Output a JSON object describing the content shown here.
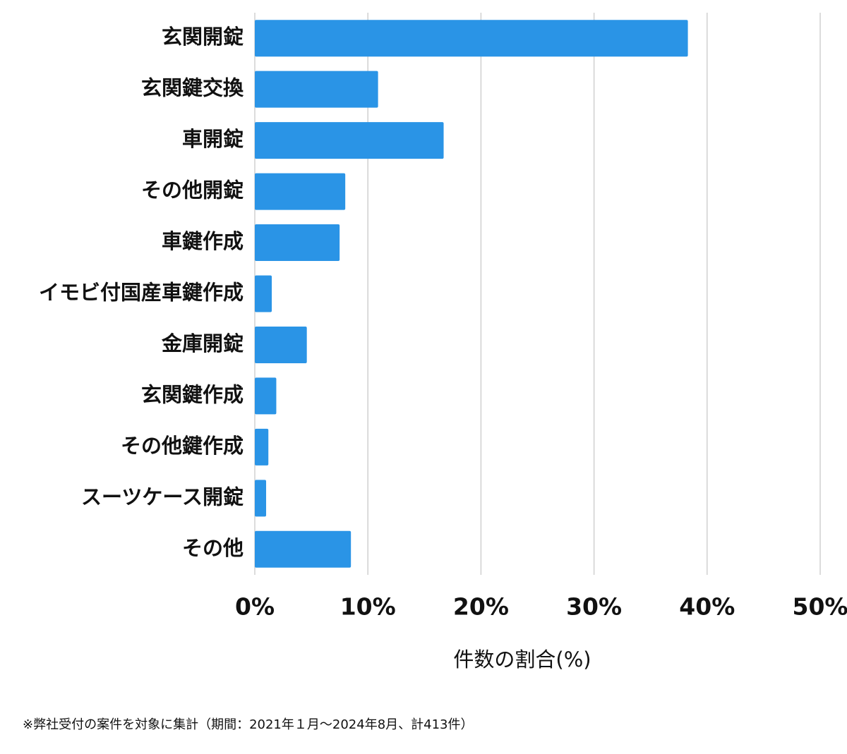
{
  "chart_data": {
    "type": "barh",
    "categories": [
      "玄関開錠",
      "玄関鍵交換",
      "車開錠",
      "その他開錠",
      "車鍵作成",
      "イモビ付国産車鍵作成",
      "金庫開錠",
      "玄関鍵作成",
      "その他鍵作成",
      "スーツケース開錠",
      "その他"
    ],
    "values": [
      38.3,
      10.9,
      16.7,
      8.0,
      7.5,
      1.5,
      4.6,
      1.9,
      1.2,
      1.0,
      8.5
    ],
    "color": "#2a94e6",
    "xlim": [
      0,
      50
    ],
    "xticks": [
      {
        "value": 0,
        "label": "0%"
      },
      {
        "value": 10,
        "label": "10%"
      },
      {
        "value": 20,
        "label": "20%"
      },
      {
        "value": 30,
        "label": "30%"
      },
      {
        "value": 40,
        "label": "40%"
      },
      {
        "value": 50,
        "label": "50%"
      }
    ],
    "xlabel": "件数の割合(%)",
    "grid": true,
    "footnote": "※弊社受付の案件を対象に集計（期間：2021年１月〜2024年8月、計413件）"
  }
}
